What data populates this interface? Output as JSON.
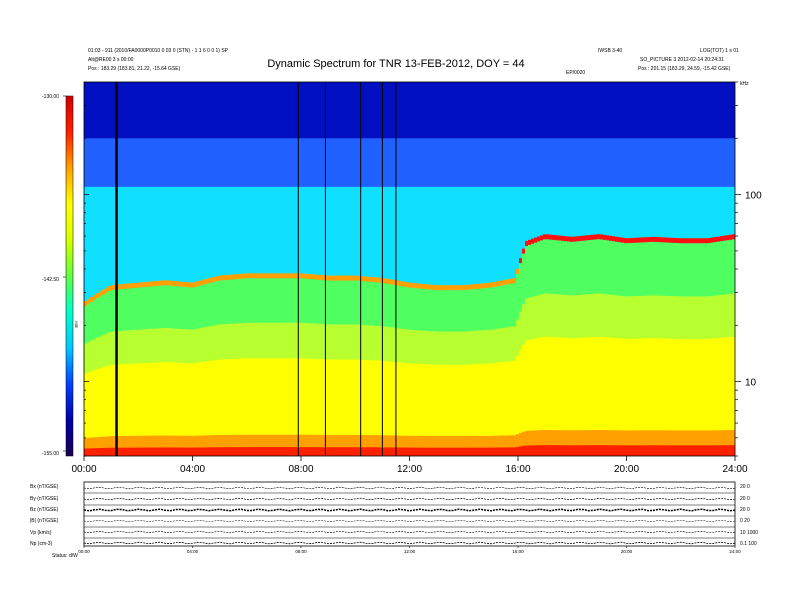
{
  "header": {
    "title": "Dynamic Spectrum for TNR 13-FEB-2012, DOY = 44",
    "left_info": [
      "01:03 - 911 (2010/FA0000P0010 0 03 0 (STN) - 1 1 6 0 0 1) SP",
      "Alt@RE00 3 s 00:00",
      "Pos : 183.29 (183.81, 21.22, -15.64 GSE)"
    ],
    "right_info": [
      "IWSB 3-40",
      "LOG(TOT) 1 s 01",
      "SO_PICTURE 3 2012-02-14 20:24:31",
      "Pos : 201.15 (183.29, 24.59, -15.42 GSE)"
    ],
    "orbit_tag": "EP/0020",
    "corner_tag": "kHz"
  },
  "colorbar": {
    "max_label": "-130.00",
    "mid_label": "-142.50",
    "min_label": "-155.00",
    "unit": "dBV",
    "colors": [
      "#1a0050",
      "#0000aa",
      "#0040ff",
      "#00c8ff",
      "#00ffcc",
      "#60ff40",
      "#d8ff00",
      "#ffff00",
      "#ffa000",
      "#ff2000",
      "#d00000"
    ]
  },
  "lower_panels": {
    "labels": [
      "Bx (nT/GSE)",
      "By (nT/GSE)",
      "Bz (nT/GSE)",
      "|B| (nT/GSE)",
      "Vp (km/s)",
      "Np (cm-3)"
    ],
    "right_ticks": [
      "20 0",
      "20 0",
      "20 0",
      "0 20",
      "10 1000",
      "0.1 100"
    ],
    "time_ticks": [
      "00:00",
      "04:00",
      "08:00",
      "12:00",
      "16:00",
      "20:00",
      "24:00"
    ],
    "footer": "Status: d/W"
  },
  "chart_data": {
    "type": "heatmap",
    "title": "Dynamic Spectrum for TNR 13-FEB-2012, DOY = 44",
    "xlabel": "",
    "ylabel": "",
    "xlim": [
      "00:00",
      "24:00"
    ],
    "x_ticks": [
      "00:00",
      "04:00",
      "08:00",
      "12:00",
      "16:00",
      "20:00",
      "24:00"
    ],
    "y_scale": "log",
    "y_ticks": [
      10,
      100
    ],
    "ylim": [
      4,
      400
    ],
    "colorbar": {
      "range": [
        -155.0,
        -130.0
      ],
      "ticks": [
        -130.0,
        -142.5,
        -155.0
      ],
      "unit": "dBV"
    },
    "plasma_line_freq": {
      "hours": [
        0,
        1,
        2,
        3,
        4,
        5,
        6,
        7,
        8,
        9,
        10,
        11,
        12,
        13,
        14,
        15,
        15.9,
        16.3,
        17,
        18,
        19,
        20,
        21,
        22,
        23,
        24
      ],
      "kHz": [
        26,
        32,
        33,
        34,
        33,
        36,
        37,
        37,
        37,
        36,
        36,
        35,
        33,
        32,
        32,
        33,
        35,
        55,
        60,
        58,
        60,
        57,
        58,
        57,
        57,
        60
      ]
    },
    "vertical_lines_hours": [
      1.2,
      7.9,
      8.9,
      10.2,
      11.0,
      11.5
    ]
  }
}
